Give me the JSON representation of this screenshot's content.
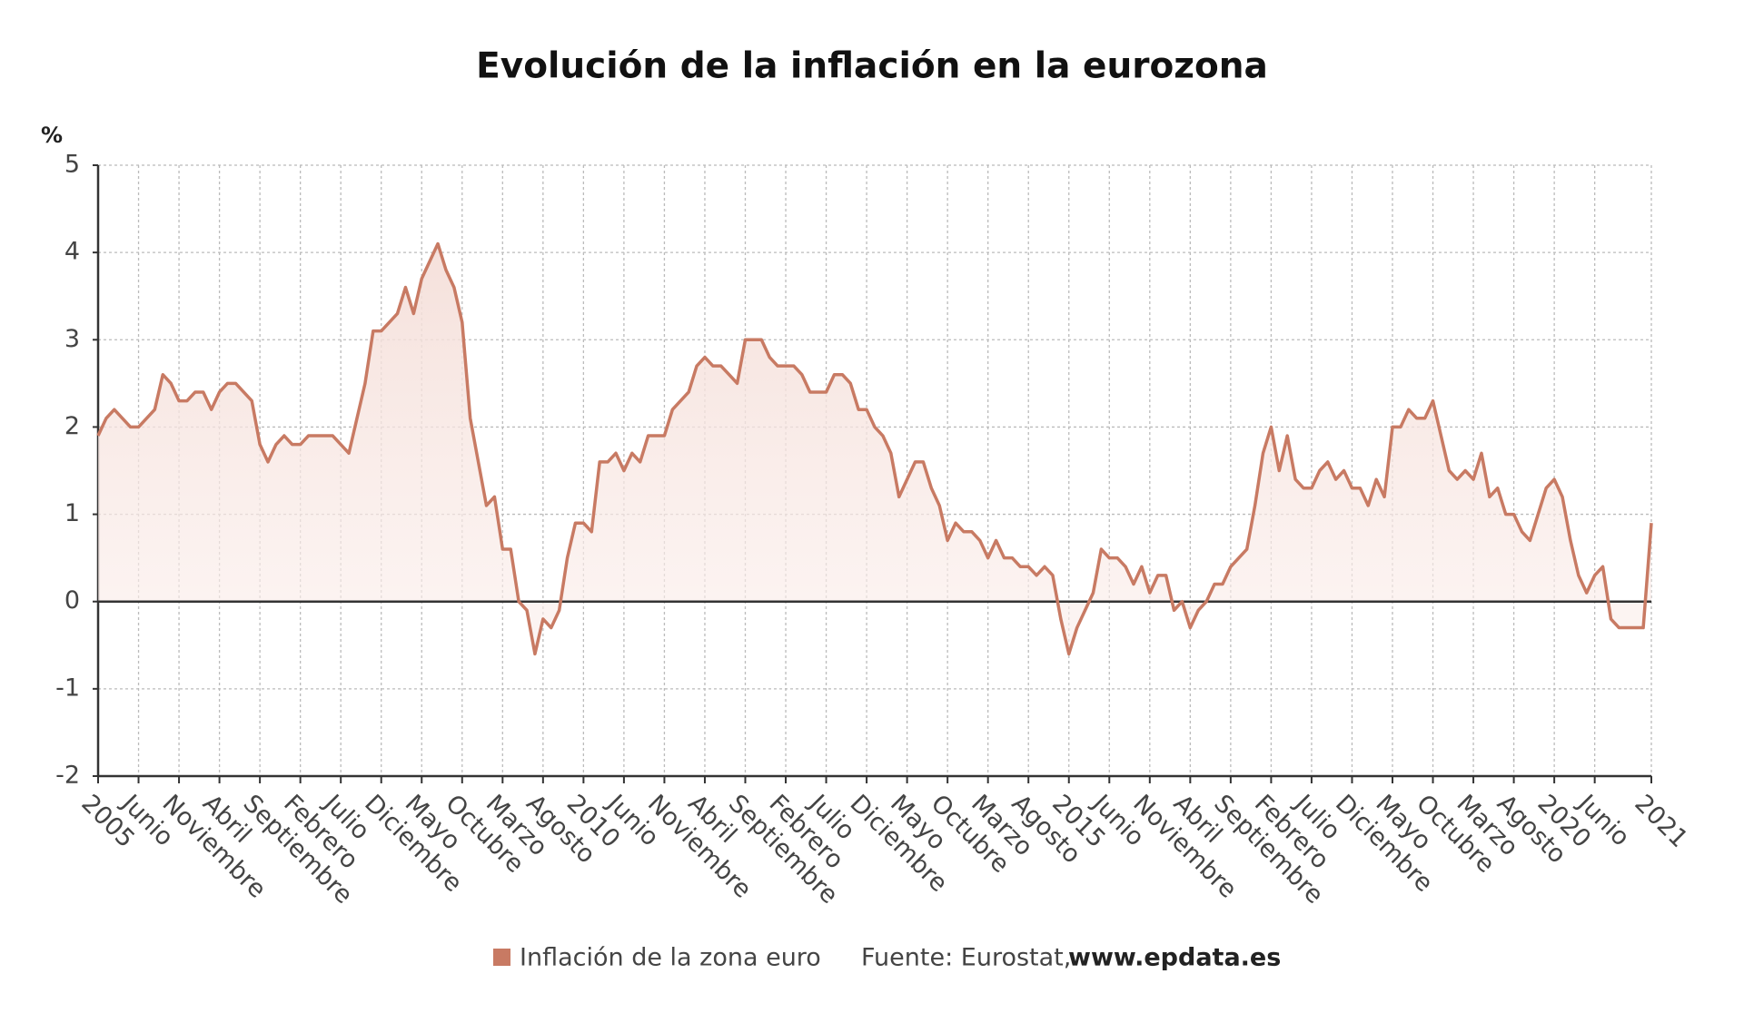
{
  "chart_data": {
    "type": "line",
    "title": "Evolución de la inflación en la eurozona",
    "y_label": "%",
    "categories": [
      "2005",
      null,
      null,
      null,
      null,
      "Junio",
      null,
      null,
      null,
      null,
      "Noviembre",
      null,
      null,
      null,
      null,
      "Abril",
      null,
      null,
      null,
      null,
      "Septiembre",
      null,
      null,
      null,
      null,
      "Febrero",
      null,
      null,
      null,
      null,
      "Julio",
      null,
      null,
      null,
      null,
      "Diciembre",
      null,
      null,
      null,
      null,
      "Mayo",
      null,
      null,
      null,
      null,
      "Octubre",
      null,
      null,
      null,
      null,
      "Marzo",
      null,
      null,
      null,
      null,
      "Agosto",
      null,
      null,
      null,
      null,
      "2010",
      null,
      null,
      null,
      null,
      "Junio",
      null,
      null,
      null,
      null,
      "Noviembre",
      null,
      null,
      null,
      null,
      "Abril",
      null,
      null,
      null,
      null,
      "Septiembre",
      null,
      null,
      null,
      null,
      "Febrero",
      null,
      null,
      null,
      null,
      "Julio",
      null,
      null,
      null,
      null,
      "Diciembre",
      null,
      null,
      null,
      null,
      "Mayo",
      null,
      null,
      null,
      null,
      "Octubre",
      null,
      null,
      null,
      null,
      "Marzo",
      null,
      null,
      null,
      null,
      "Agosto",
      null,
      null,
      null,
      null,
      "2015",
      null,
      null,
      null,
      null,
      "Junio",
      null,
      null,
      null,
      null,
      "Noviembre",
      null,
      null,
      null,
      null,
      "Abril",
      null,
      null,
      null,
      null,
      "Septiembre",
      null,
      null,
      null,
      null,
      "Febrero",
      null,
      null,
      null,
      null,
      "Julio",
      null,
      null,
      null,
      null,
      "Diciembre",
      null,
      null,
      null,
      null,
      "Mayo",
      null,
      null,
      null,
      null,
      "Octubre",
      null,
      null,
      null,
      null,
      "Marzo",
      null,
      null,
      null,
      null,
      "Agosto",
      null,
      null,
      null,
      null,
      "2020",
      null,
      null,
      null,
      null,
      "Junio",
      null,
      null,
      null,
      null,
      null,
      null,
      "2021"
    ],
    "series": [
      {
        "name": "Inflación de la zona euro",
        "color": "#c87a63",
        "values": [
          1.9,
          2.1,
          2.2,
          2.1,
          2.0,
          2.0,
          2.1,
          2.2,
          2.6,
          2.5,
          2.3,
          2.3,
          2.4,
          2.4,
          2.2,
          2.4,
          2.5,
          2.5,
          2.4,
          2.3,
          1.8,
          1.6,
          1.8,
          1.9,
          1.8,
          1.8,
          1.9,
          1.9,
          1.9,
          1.9,
          1.8,
          1.7,
          2.1,
          2.5,
          3.1,
          3.1,
          3.2,
          3.3,
          3.6,
          3.3,
          3.7,
          3.9,
          4.1,
          3.8,
          3.6,
          3.2,
          2.1,
          1.6,
          1.1,
          1.2,
          0.6,
          0.6,
          0.0,
          -0.1,
          -0.6,
          -0.2,
          -0.3,
          -0.1,
          0.5,
          0.9,
          0.9,
          0.8,
          1.6,
          1.6,
          1.7,
          1.5,
          1.7,
          1.6,
          1.9,
          1.9,
          1.9,
          2.2,
          2.3,
          2.4,
          2.7,
          2.8,
          2.7,
          2.7,
          2.6,
          2.5,
          3.0,
          3.0,
          3.0,
          2.8,
          2.7,
          2.7,
          2.7,
          2.6,
          2.4,
          2.4,
          2.4,
          2.6,
          2.6,
          2.5,
          2.2,
          2.2,
          2.0,
          1.9,
          1.7,
          1.2,
          1.4,
          1.6,
          1.6,
          1.3,
          1.1,
          0.7,
          0.9,
          0.8,
          0.8,
          0.7,
          0.5,
          0.7,
          0.5,
          0.5,
          0.4,
          0.4,
          0.3,
          0.4,
          0.3,
          -0.2,
          -0.6,
          -0.3,
          -0.1,
          0.1,
          0.6,
          0.5,
          0.5,
          0.4,
          0.2,
          0.4,
          0.1,
          0.3,
          0.3,
          -0.1,
          0.0,
          -0.3,
          -0.1,
          0.0,
          0.2,
          0.2,
          0.4,
          0.5,
          0.6,
          1.1,
          1.7,
          2.0,
          1.5,
          1.9,
          1.4,
          1.3,
          1.3,
          1.5,
          1.6,
          1.4,
          1.5,
          1.3,
          1.3,
          1.1,
          1.4,
          1.2,
          2.0,
          2.0,
          2.2,
          2.1,
          2.1,
          2.3,
          1.9,
          1.5,
          1.4,
          1.5,
          1.4,
          1.7,
          1.2,
          1.3,
          1.0,
          1.0,
          0.8,
          0.7,
          1.0,
          1.3,
          1.4,
          1.2,
          0.7,
          0.3,
          0.1,
          0.3,
          0.4,
          -0.2,
          -0.3,
          -0.3,
          -0.3,
          -0.3,
          0.9
        ]
      }
    ],
    "ylim": [
      -2,
      5
    ],
    "yticks": [
      -2,
      -1,
      0,
      1,
      2,
      3,
      4,
      5
    ],
    "grid": true,
    "source_label": "Fuente: Eurostat,",
    "source_site": "www.epdata.es"
  }
}
